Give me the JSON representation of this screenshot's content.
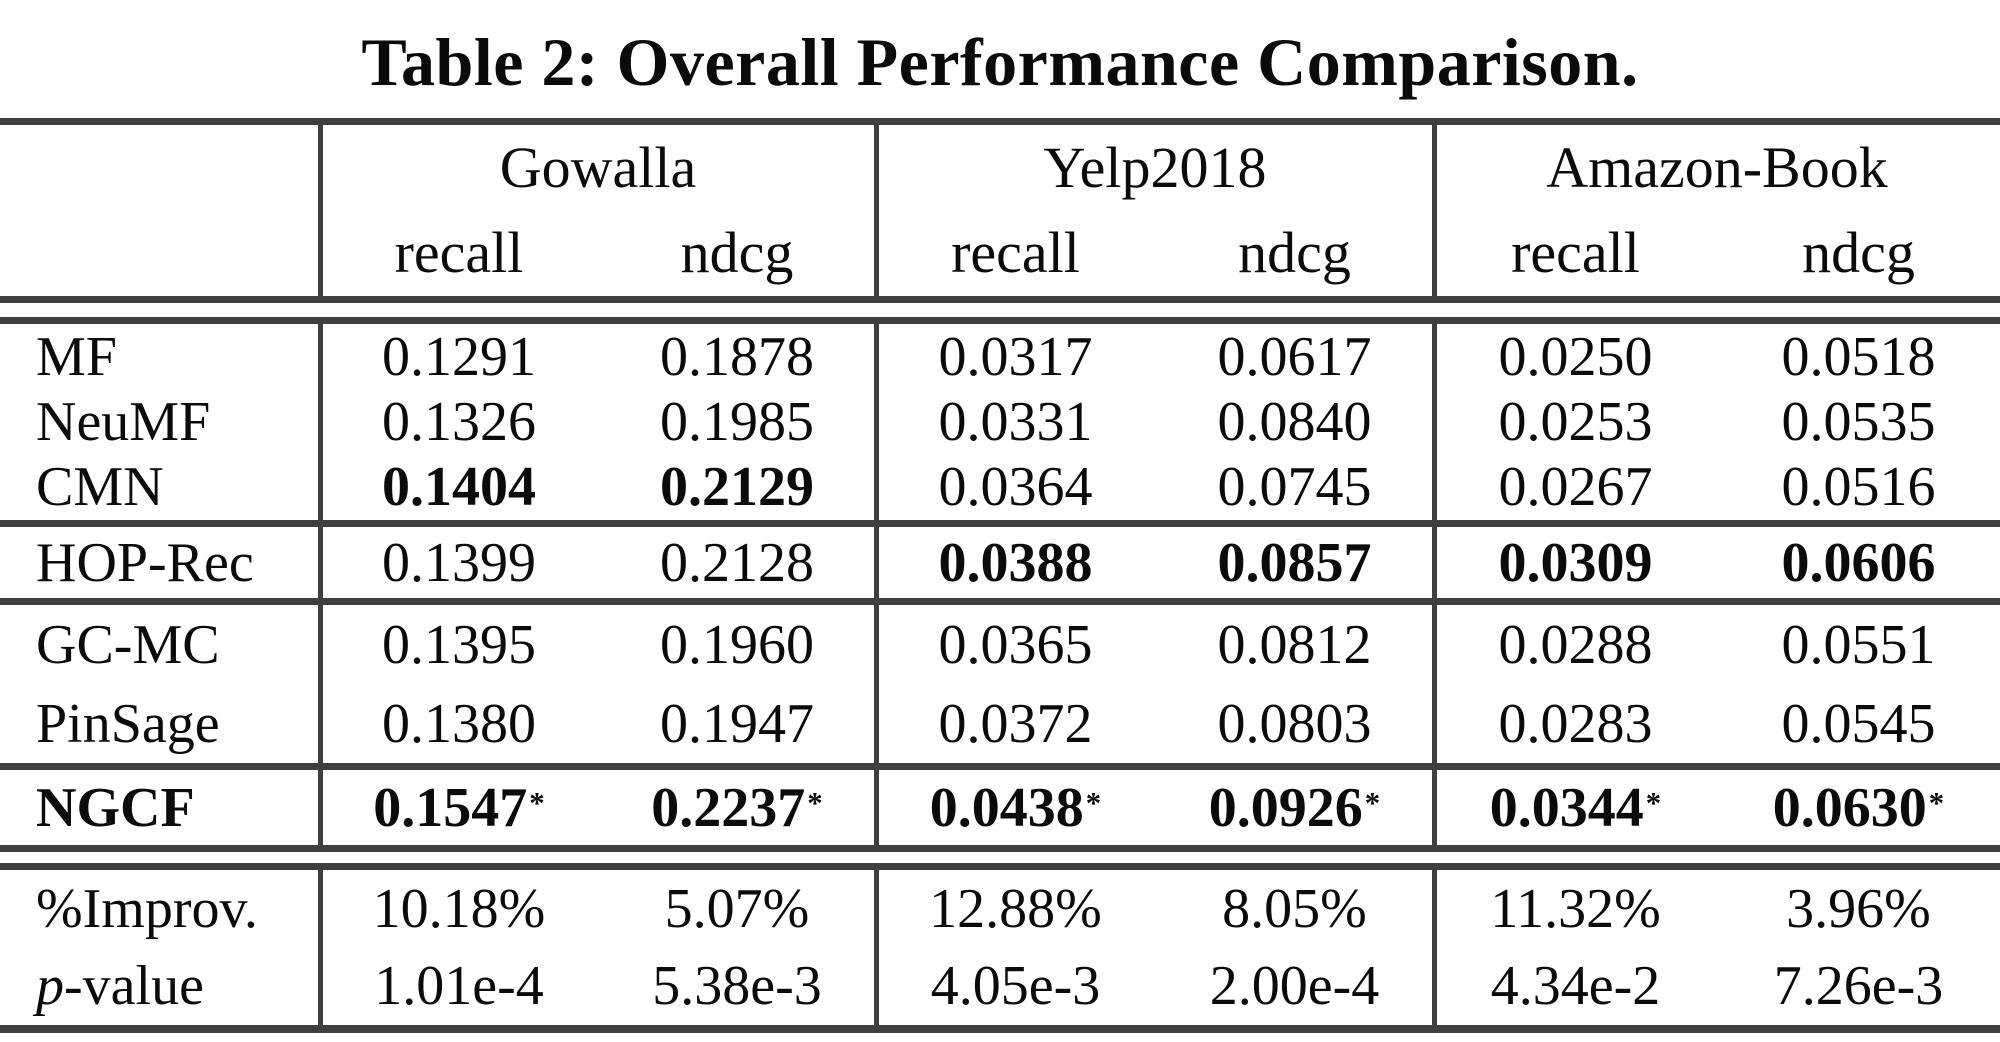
{
  "title": "Table 2: Overall Performance Comparison.",
  "table": {
    "groups": [
      {
        "name": "Gowalla"
      },
      {
        "name": "Yelp2018"
      },
      {
        "name": "Amazon-Book"
      }
    ],
    "metric_headers": [
      "recall",
      "ndcg",
      "recall",
      "ndcg",
      "recall",
      "ndcg"
    ],
    "rows": [
      {
        "label": "MF",
        "values": [
          "0.1291",
          "0.1878",
          "0.0317",
          "0.0617",
          "0.0250",
          "0.0518"
        ]
      },
      {
        "label": "NeuMF",
        "values": [
          "0.1326",
          "0.1985",
          "0.0331",
          "0.0840",
          "0.0253",
          "0.0535"
        ]
      },
      {
        "label": "CMN",
        "values": [
          "0.1404",
          "0.2129",
          "0.0364",
          "0.0745",
          "0.0267",
          "0.0516"
        ]
      },
      {
        "label": "HOP-Rec",
        "values": [
          "0.1399",
          "0.2128",
          "0.0388",
          "0.0857",
          "0.0309",
          "0.0606"
        ]
      },
      {
        "label": "GC-MC",
        "values": [
          "0.1395",
          "0.1960",
          "0.0365",
          "0.0812",
          "0.0288",
          "0.0551"
        ]
      },
      {
        "label": "PinSage",
        "values": [
          "0.1380",
          "0.1947",
          "0.0372",
          "0.0803",
          "0.0283",
          "0.0545"
        ]
      },
      {
        "label": "NGCF",
        "values": [
          "0.1547",
          "0.2237",
          "0.0438",
          "0.0926",
          "0.0344",
          "0.0630"
        ],
        "star": "*"
      },
      {
        "label": "%Improv.",
        "values": [
          "10.18%",
          "5.07%",
          "12.88%",
          "8.05%",
          "11.32%",
          "3.96%"
        ]
      },
      {
        "label_italic": "p",
        "label_rest": "-value",
        "values": [
          "1.01e-4",
          "5.38e-3",
          "4.05e-3",
          "2.00e-4",
          "4.34e-2",
          "7.26e-3"
        ]
      }
    ]
  }
}
